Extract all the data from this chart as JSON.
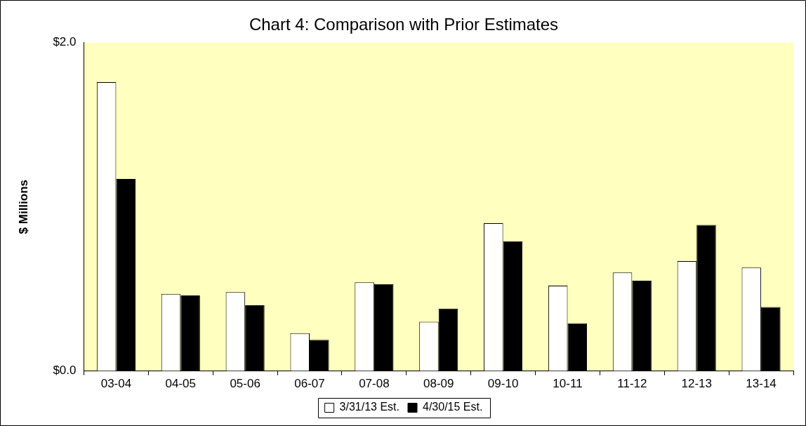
{
  "chart_data": {
    "type": "bar",
    "title": "Chart 4: Comparison with Prior Estimates",
    "ylabel": "$ Millions",
    "categories": [
      "03-04",
      "04-05",
      "05-06",
      "06-07",
      "07-08",
      "08-09",
      "09-10",
      "10-11",
      "11-12",
      "12-13",
      "13-14"
    ],
    "series": [
      {
        "name": "3/31/13 Est.",
        "color": "#ffffff",
        "values": [
          1.76,
          0.47,
          0.48,
          0.23,
          0.54,
          0.3,
          0.9,
          0.52,
          0.6,
          0.67,
          0.63
        ]
      },
      {
        "name": "4/30/15 Est.",
        "color": "#000000",
        "values": [
          1.17,
          0.46,
          0.4,
          0.19,
          0.53,
          0.38,
          0.79,
          0.29,
          0.55,
          0.89,
          0.39
        ]
      }
    ],
    "ylim": [
      0,
      2
    ],
    "yticks": [
      {
        "value": 0,
        "label": "$0.0"
      },
      {
        "value": 2,
        "label": "$2.0"
      }
    ],
    "legend": "bottom"
  }
}
